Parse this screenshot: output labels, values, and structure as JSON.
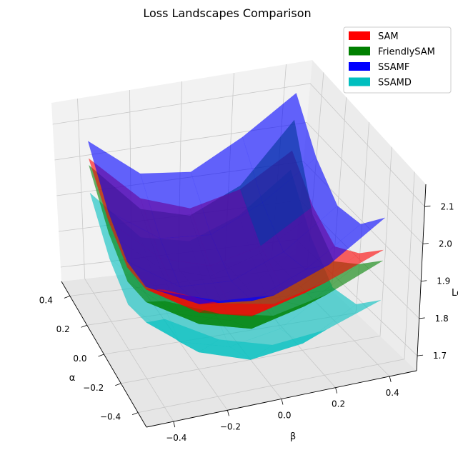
{
  "chart_data": {
    "type": "surface3d",
    "title": "Loss Landscapes Comparison",
    "xlabel": "α",
    "ylabel": "β",
    "zlabel": "Loss",
    "x_ticks": [
      0.4,
      0.2,
      0.0,
      -0.2,
      -0.4
    ],
    "x_tick_labels": [
      "0.4",
      "0.2",
      "0.0",
      "−0.2",
      "−0.4"
    ],
    "y_ticks": [
      0.4,
      0.2,
      0.0,
      -0.2,
      -0.4
    ],
    "y_tick_labels": [
      "0.4",
      "0.2",
      "0.0",
      "−0.2",
      "−0.4"
    ],
    "z_ticks": [
      1.7,
      1.8,
      1.9,
      2.0,
      2.1
    ],
    "z_tick_labels": [
      "1.7",
      "1.8",
      "1.9",
      "2.0",
      "2.1"
    ],
    "xlim": [
      -0.5,
      0.5
    ],
    "ylim": [
      -0.5,
      0.5
    ],
    "zlim": [
      1.66,
      2.16
    ],
    "grid": true,
    "legend_position": "top-right",
    "series": [
      {
        "name": "SAM",
        "color": "#ff0000",
        "values": [
          [
            2.18,
            2.02,
            1.94,
            1.95,
            1.98
          ],
          [
            2.01,
            1.86,
            1.8,
            1.83,
            1.9
          ],
          [
            1.95,
            1.79,
            1.74,
            1.77,
            1.85
          ],
          [
            1.98,
            1.83,
            1.78,
            1.81,
            1.89
          ],
          [
            2.05,
            1.91,
            1.86,
            1.89,
            1.97
          ]
        ]
      },
      {
        "name": "FriendlySAM",
        "color": "#008000",
        "values": [
          [
            2.13,
            1.98,
            1.9,
            1.91,
            1.95
          ],
          [
            1.96,
            1.82,
            1.76,
            1.79,
            1.87
          ],
          [
            1.9,
            1.75,
            1.7,
            1.73,
            1.81
          ],
          [
            1.94,
            1.8,
            1.75,
            1.79,
            1.87
          ],
          [
            2.03,
            1.88,
            1.84,
            1.9,
            2.05
          ]
        ]
      },
      {
        "name": "SSAMF",
        "color": "#0000ff",
        "values": [
          [
            2.17,
            2.03,
            1.97,
            2.0,
            2.07
          ],
          [
            2.02,
            1.89,
            1.85,
            1.9,
            1.98
          ],
          [
            1.97,
            1.84,
            1.82,
            1.87,
            1.96
          ],
          [
            2.01,
            1.89,
            1.87,
            1.93,
            2.02
          ],
          [
            2.1,
            1.98,
            1.96,
            2.03,
            2.12
          ]
        ]
      },
      {
        "name": "SSAMD",
        "color": "#00bfbf",
        "values": [
          [
            2.05,
            1.88,
            1.8,
            1.8,
            1.84
          ],
          [
            1.88,
            1.72,
            1.66,
            1.68,
            1.76
          ],
          [
            1.82,
            1.66,
            1.62,
            1.65,
            1.74
          ],
          [
            1.86,
            1.71,
            1.68,
            1.72,
            1.81
          ],
          [
            1.95,
            1.8,
            1.77,
            1.82,
            1.92
          ]
        ]
      }
    ]
  }
}
